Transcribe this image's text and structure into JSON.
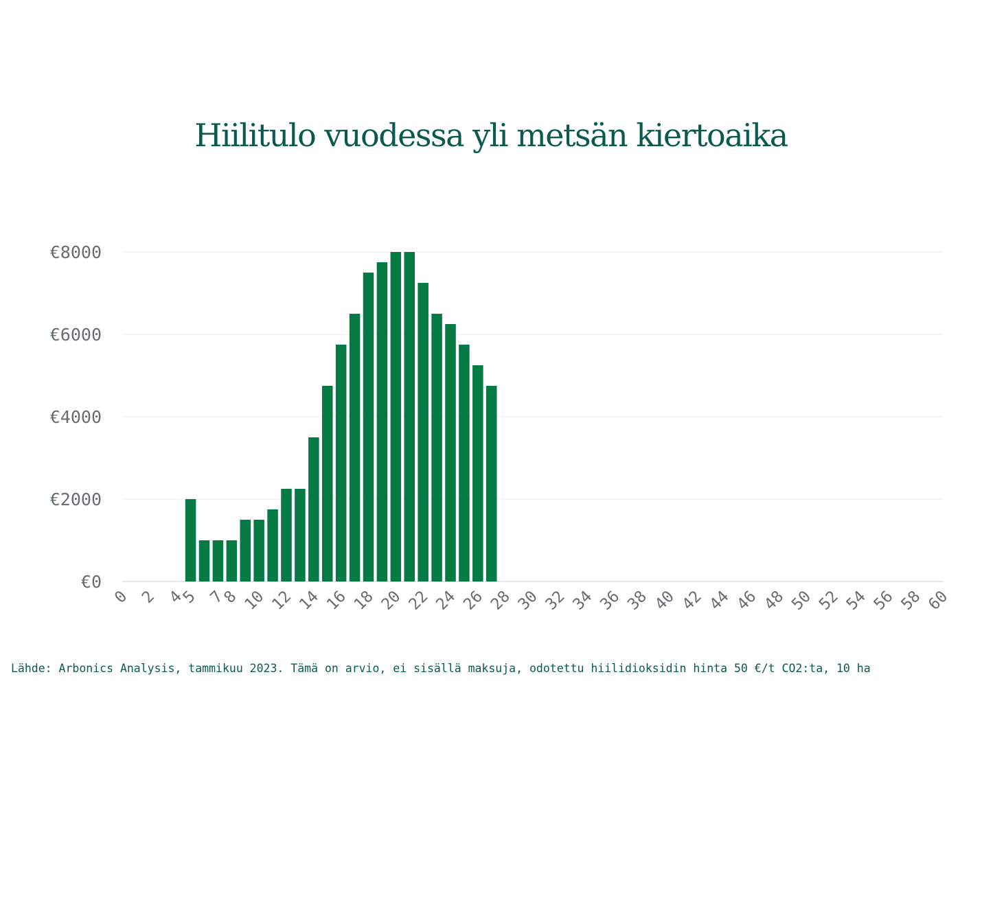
{
  "title": "Hiilitulo vuodessa yli metsän kiertoaika",
  "source_note": "Lähde: Arbonics Analysis, tammikuu 2023. Tämä on arvio, ei sisällä maksuja, odotettu hiilidioksidin hinta 50 €/t CO2:ta, 10 ha",
  "colors": {
    "bar": "#067a44",
    "title": "#0b5a50",
    "tick": "#666e70"
  },
  "chart_data": {
    "type": "bar",
    "title": "Hiilitulo vuodessa yli metsän kiertoaika",
    "xlabel": "",
    "ylabel": "",
    "x_range": [
      0,
      60
    ],
    "x_ticks": [
      "0",
      "2",
      "4",
      "5",
      "7",
      "8",
      "10",
      "12",
      "14",
      "16",
      "18",
      "20",
      "22",
      "24",
      "26",
      "28",
      "30",
      "32",
      "34",
      "36",
      "38",
      "40",
      "42",
      "44",
      "46",
      "48",
      "50",
      "52",
      "54",
      "56",
      "58",
      "60"
    ],
    "y_ticks": [
      "€0",
      "€2000",
      "€4000",
      "€6000",
      "€8000"
    ],
    "ylim": [
      0,
      8000
    ],
    "grid": true,
    "x": [
      5,
      6,
      7,
      8,
      9,
      10,
      11,
      12,
      13,
      14,
      15,
      16,
      17,
      18,
      19,
      20,
      21,
      22,
      23,
      24,
      25,
      26,
      27
    ],
    "values": [
      2000,
      1000,
      1000,
      1000,
      1500,
      1500,
      1750,
      2250,
      2250,
      3500,
      4750,
      5750,
      6500,
      7500,
      7750,
      8000,
      8000,
      7250,
      6500,
      6250,
      5750,
      5250,
      4750
    ]
  }
}
